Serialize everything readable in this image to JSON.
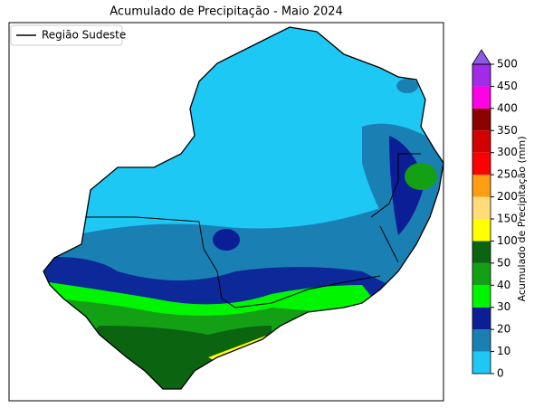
{
  "title": "Acumulado de Precipitação - Maio 2024",
  "legend": {
    "label": "Região Sudeste"
  },
  "colorbar": {
    "label": "Acumulado de Precipitação (mm)",
    "ticks": [
      0,
      10,
      20,
      30,
      40,
      50,
      100,
      150,
      200,
      250,
      300,
      350,
      400,
      450,
      500
    ],
    "colors": [
      "#1ec8f5",
      "#1a80b4",
      "#0b1e96",
      "#00f500",
      "#14a014",
      "#0a6410",
      "#ffff00",
      "#ffdc78",
      "#ff9e12",
      "#ff0000",
      "#d20000",
      "#8c0000",
      "#ff00e6",
      "#a02be8"
    ],
    "extend_color": "#8c5ae6"
  }
}
